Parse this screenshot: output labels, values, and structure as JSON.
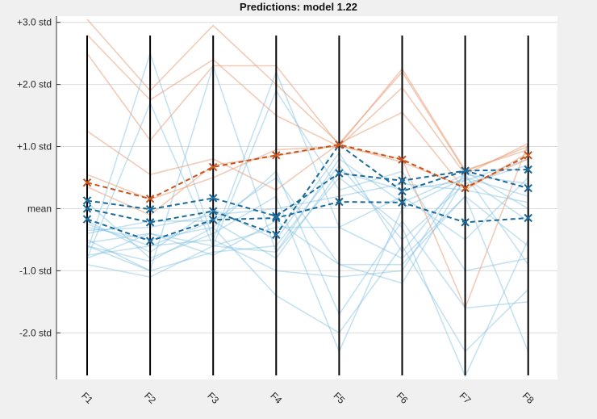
{
  "chart_data": {
    "type": "parallel-coordinates",
    "title": "Predictions: model 1.22",
    "axes": [
      "F1",
      "F2",
      "F3",
      "F4",
      "F5",
      "F6",
      "F7",
      "F8"
    ],
    "y_ticks": [
      {
        "value": 3,
        "label": "+3.0 std"
      },
      {
        "value": 2,
        "label": "+2.0 std"
      },
      {
        "value": 1,
        "label": "+1.0 std"
      },
      {
        "value": 0,
        "label": "mean"
      },
      {
        "value": -1,
        "label": "-1.0 std"
      },
      {
        "value": -2,
        "label": "-2.0 std"
      }
    ],
    "ylim": [
      -2.75,
      3.1
    ],
    "grid": true,
    "colors": {
      "orange_mean": "#c8541c",
      "blue_mean": "#1a6a9a",
      "orange_sample": "#e8a07c",
      "blue_sample": "#7fbfe0",
      "axis_line": "#000000",
      "background": "#f0f0f0",
      "plot_background": "#ffffff"
    },
    "orange_means": [
      [
        0.42,
        0.16,
        0.67,
        0.86,
        1.03,
        0.79,
        0.33,
        0.86
      ]
    ],
    "blue_means": [
      [
        0.13,
        -0.01,
        0.17,
        -0.12,
        0.57,
        0.45,
        0.61,
        0.33
      ],
      [
        0.0,
        -0.22,
        -0.04,
        -0.42,
        1.03,
        0.28,
        0.61,
        0.63
      ],
      [
        -0.17,
        -0.52,
        -0.18,
        -0.15,
        0.11,
        0.1,
        -0.22,
        -0.15
      ]
    ],
    "orange_samples": [
      [
        3.05,
        1.9,
        2.95,
        2.0,
        1.05,
        2.2,
        0.6,
        1.0
      ],
      [
        2.8,
        1.75,
        2.4,
        1.5,
        1.0,
        1.95,
        0.55,
        1.05
      ],
      [
        2.5,
        1.1,
        2.3,
        2.3,
        1.02,
        2.25,
        0.62,
        0.95
      ],
      [
        1.25,
        0.55,
        0.8,
        0.3,
        1.05,
        1.55,
        0.3,
        0.9
      ],
      [
        0.55,
        0.15,
        0.5,
        0.95,
        1.0,
        0.8,
        -1.6,
        1.05
      ],
      [
        0.35,
        -0.1,
        0.7,
        0.85,
        1.02,
        0.75,
        0.35,
        0.8
      ]
    ],
    "blue_samples": [
      [
        -0.7,
        2.5,
        -0.5,
        2.2,
        -0.3,
        -0.8,
        0.2,
        -2.3
      ],
      [
        -0.5,
        -1.0,
        2.3,
        -0.7,
        0.5,
        -0.3,
        -2.7,
        -0.5
      ],
      [
        -0.3,
        -0.5,
        -0.3,
        -1.4,
        -2.0,
        -0.6,
        -2.3,
        -1.3
      ],
      [
        -0.8,
        -0.4,
        -0.6,
        1.9,
        0.3,
        0.6,
        -1.0,
        -0.8
      ],
      [
        0.1,
        -0.8,
        -0.4,
        0.2,
        -2.3,
        0.0,
        0.5,
        0.2
      ],
      [
        -0.6,
        -1.0,
        -0.7,
        -0.6,
        0.7,
        -0.5,
        0.4,
        0.7
      ],
      [
        -0.4,
        -0.2,
        -0.2,
        0.5,
        -0.9,
        -1.2,
        0.5,
        -0.2
      ],
      [
        -0.9,
        -1.1,
        -0.6,
        -0.3,
        -0.3,
        0.2,
        -0.5,
        0.5
      ],
      [
        -0.2,
        -0.7,
        0.0,
        -0.5,
        0.9,
        -0.7,
        0.55,
        -0.9
      ],
      [
        -0.75,
        -0.6,
        -0.5,
        -1.0,
        -1.1,
        -1.0,
        0.6,
        0.0
      ],
      [
        -0.35,
        -0.3,
        -0.1,
        0.0,
        0.2,
        0.4,
        0.3,
        0.1
      ],
      [
        -0.6,
        -0.85,
        -0.3,
        0.6,
        -1.7,
        -0.2,
        -1.6,
        -1.5
      ],
      [
        -0.8,
        1.7,
        -0.6,
        -0.7,
        0.8,
        0.1,
        0.55,
        0.4
      ],
      [
        -0.55,
        -0.4,
        -0.75,
        -0.2,
        -0.9,
        -0.9,
        0.2,
        -0.6
      ],
      [
        -0.25,
        -0.6,
        -0.2,
        -0.8,
        0.6,
        0.3,
        0.45,
        0.8
      ]
    ]
  }
}
